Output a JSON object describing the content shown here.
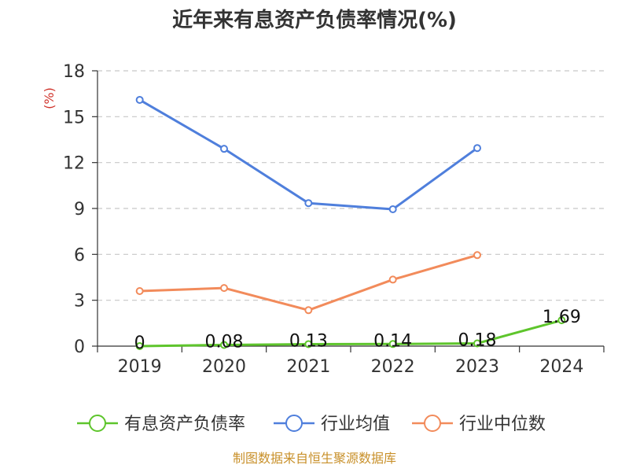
{
  "chart_data": {
    "type": "line",
    "title": "近年来有息资产负债率情况(%)",
    "ylabel": "(%)",
    "categories": [
      "2019",
      "2020",
      "2021",
      "2022",
      "2023",
      "2024"
    ],
    "ylim": [
      0,
      18
    ],
    "yticks": [
      0,
      3,
      6,
      9,
      12,
      15,
      18
    ],
    "grid": true,
    "legend_position": "bottom",
    "series": [
      {
        "name": "有息资产负债率",
        "color": "#5ec52c",
        "values": [
          0,
          0.08,
          0.13,
          0.14,
          0.18,
          1.69
        ],
        "labels": [
          "0",
          "0.08",
          "0.13",
          "0.14",
          "0.18",
          "1.69"
        ]
      },
      {
        "name": "行业均值",
        "color": "#4f7fdc",
        "values": [
          16.1,
          12.9,
          9.35,
          8.95,
          12.95,
          null
        ]
      },
      {
        "name": "行业中位数",
        "color": "#f28b5b",
        "values": [
          3.6,
          3.8,
          2.35,
          4.35,
          5.95,
          null
        ]
      }
    ]
  },
  "source": "制图数据来自恒生聚源数据库",
  "colors": {
    "axis": "#333333",
    "grid": "#c8c8c8",
    "unit": "#d0342c",
    "source": "#c8902a"
  }
}
